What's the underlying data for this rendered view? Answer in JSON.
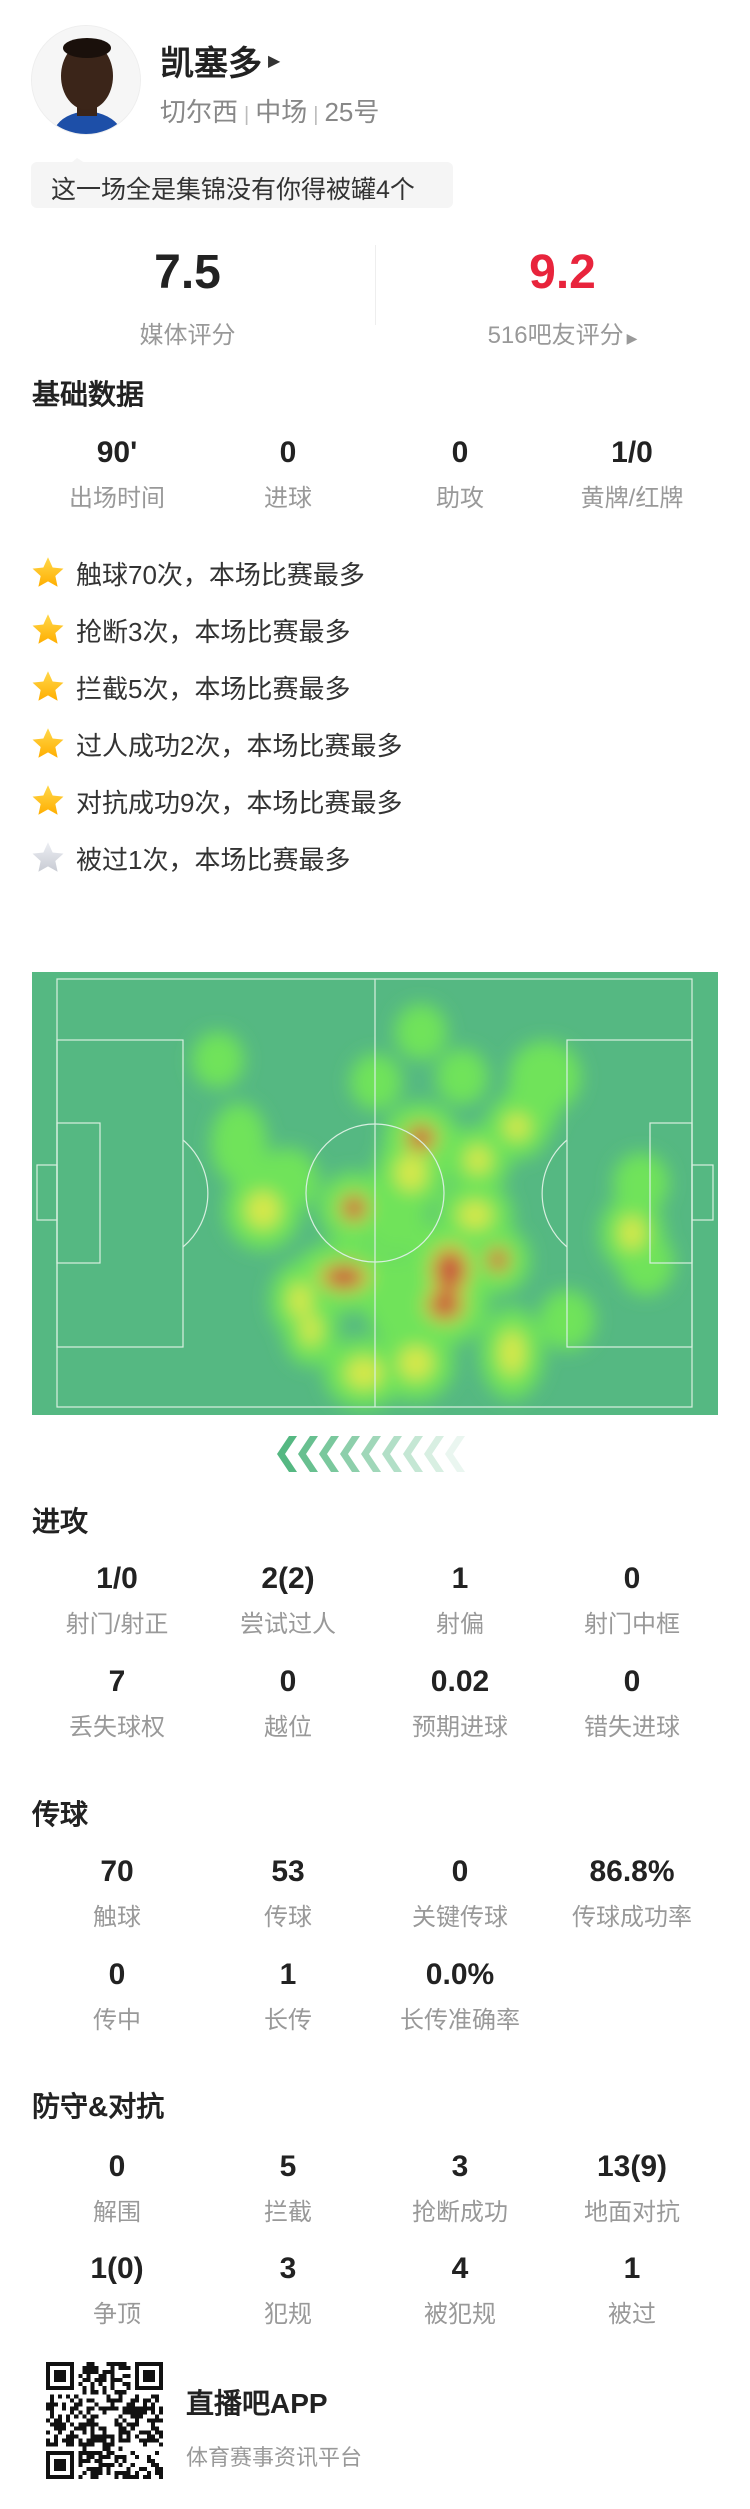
{
  "player": {
    "name": "凯塞多",
    "team": "切尔西",
    "position": "中场",
    "number": "25号",
    "tagline": "这一场全是集锦没有你得被罐4个"
  },
  "ratings": {
    "media": {
      "value": "7.5",
      "label": "媒体评分"
    },
    "fans": {
      "value": "9.2",
      "label": "516吧友评分",
      "color": "#e8243c"
    }
  },
  "basic": {
    "title": "基础数据",
    "stats": [
      {
        "v": "90'",
        "l": "出场时间"
      },
      {
        "v": "0",
        "l": "进球"
      },
      {
        "v": "0",
        "l": "助攻"
      },
      {
        "v": "1/0",
        "l": "黄牌/红牌"
      }
    ]
  },
  "highlights": [
    {
      "text": "触球70次，本场比赛最多",
      "star": "gold"
    },
    {
      "text": "抢断3次，本场比赛最多",
      "star": "gold"
    },
    {
      "text": "拦截5次，本场比赛最多",
      "star": "gold"
    },
    {
      "text": "过人成功2次，本场比赛最多",
      "star": "gold"
    },
    {
      "text": "对抗成功9次，本场比赛最多",
      "star": "gold"
    },
    {
      "text": "被过1次，本场比赛最多",
      "star": "silver"
    }
  ],
  "heatmap": {
    "pitch_color": "#55b882",
    "attack_direction": "left"
  },
  "attack": {
    "title": "进攻",
    "stats": [
      {
        "v": "1/0",
        "l": "射门/射正"
      },
      {
        "v": "2(2)",
        "l": "尝试过人"
      },
      {
        "v": "1",
        "l": "射偏"
      },
      {
        "v": "0",
        "l": "射门中框"
      },
      {
        "v": "7",
        "l": "丢失球权"
      },
      {
        "v": "0",
        "l": "越位"
      },
      {
        "v": "0.02",
        "l": "预期进球"
      },
      {
        "v": "0",
        "l": "错失进球"
      }
    ]
  },
  "passing": {
    "title": "传球",
    "stats": [
      {
        "v": "70",
        "l": "触球"
      },
      {
        "v": "53",
        "l": "传球"
      },
      {
        "v": "0",
        "l": "关键传球"
      },
      {
        "v": "86.8%",
        "l": "传球成功率"
      },
      {
        "v": "0",
        "l": "传中"
      },
      {
        "v": "1",
        "l": "长传"
      },
      {
        "v": "0.0%",
        "l": "长传准确率"
      }
    ]
  },
  "defense": {
    "title": "防守&对抗",
    "stats": [
      {
        "v": "0",
        "l": "解围"
      },
      {
        "v": "5",
        "l": "拦截"
      },
      {
        "v": "3",
        "l": "抢断成功"
      },
      {
        "v": "13(9)",
        "l": "地面对抗"
      },
      {
        "v": "1(0)",
        "l": "争顶"
      },
      {
        "v": "3",
        "l": "犯规"
      },
      {
        "v": "4",
        "l": "被犯规"
      },
      {
        "v": "1",
        "l": "被过"
      }
    ]
  },
  "footer": {
    "app": "直播吧APP",
    "slogan": "体育赛事资讯平台"
  }
}
